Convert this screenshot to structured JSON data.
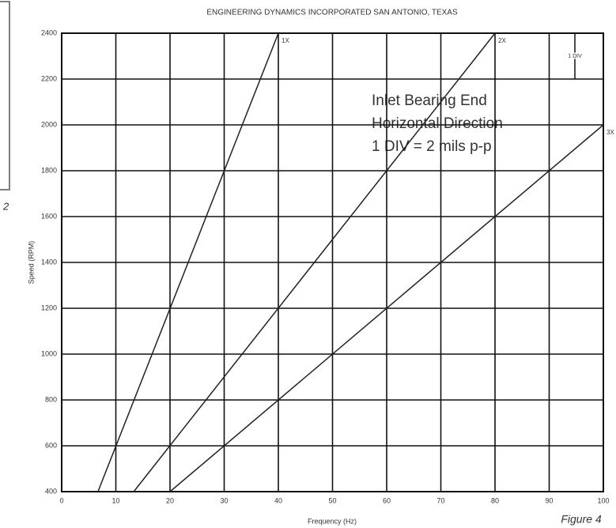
{
  "page": {
    "caption": "Figure 4",
    "fragment": "2"
  },
  "chart_data": {
    "type": "line",
    "title": "ENGINEERING DYNAMICS INCORPORATED     SAN ANTONIO, TEXAS",
    "x_label": "Frequency (Hz)",
    "y_label": "Speed (RPM)",
    "xlim": [
      0,
      100
    ],
    "xticks": [
      0,
      10,
      20,
      30,
      40,
      50,
      60,
      70,
      80,
      90,
      100
    ],
    "ylim": [
      400,
      2400
    ],
    "yticks": [
      400,
      600,
      800,
      1000,
      1200,
      1400,
      1600,
      1800,
      2000,
      2200,
      2400
    ],
    "grid": true,
    "annotation": [
      "Inlet Bearing End",
      "Horizontal Direction",
      "1 DIV = 2 mils p-p"
    ],
    "scale_label": "1 DIV",
    "series": [
      {
        "name": "1X",
        "color": "#222222",
        "x": [
          6.7,
          40
        ],
        "values": [
          400,
          2400
        ]
      },
      {
        "name": "2X",
        "color": "#222222",
        "x": [
          13.3,
          80
        ],
        "values": [
          400,
          2400
        ]
      },
      {
        "name": "3X",
        "color": "#222222",
        "x": [
          20,
          100
        ],
        "values": [
          400,
          2000
        ]
      }
    ]
  }
}
